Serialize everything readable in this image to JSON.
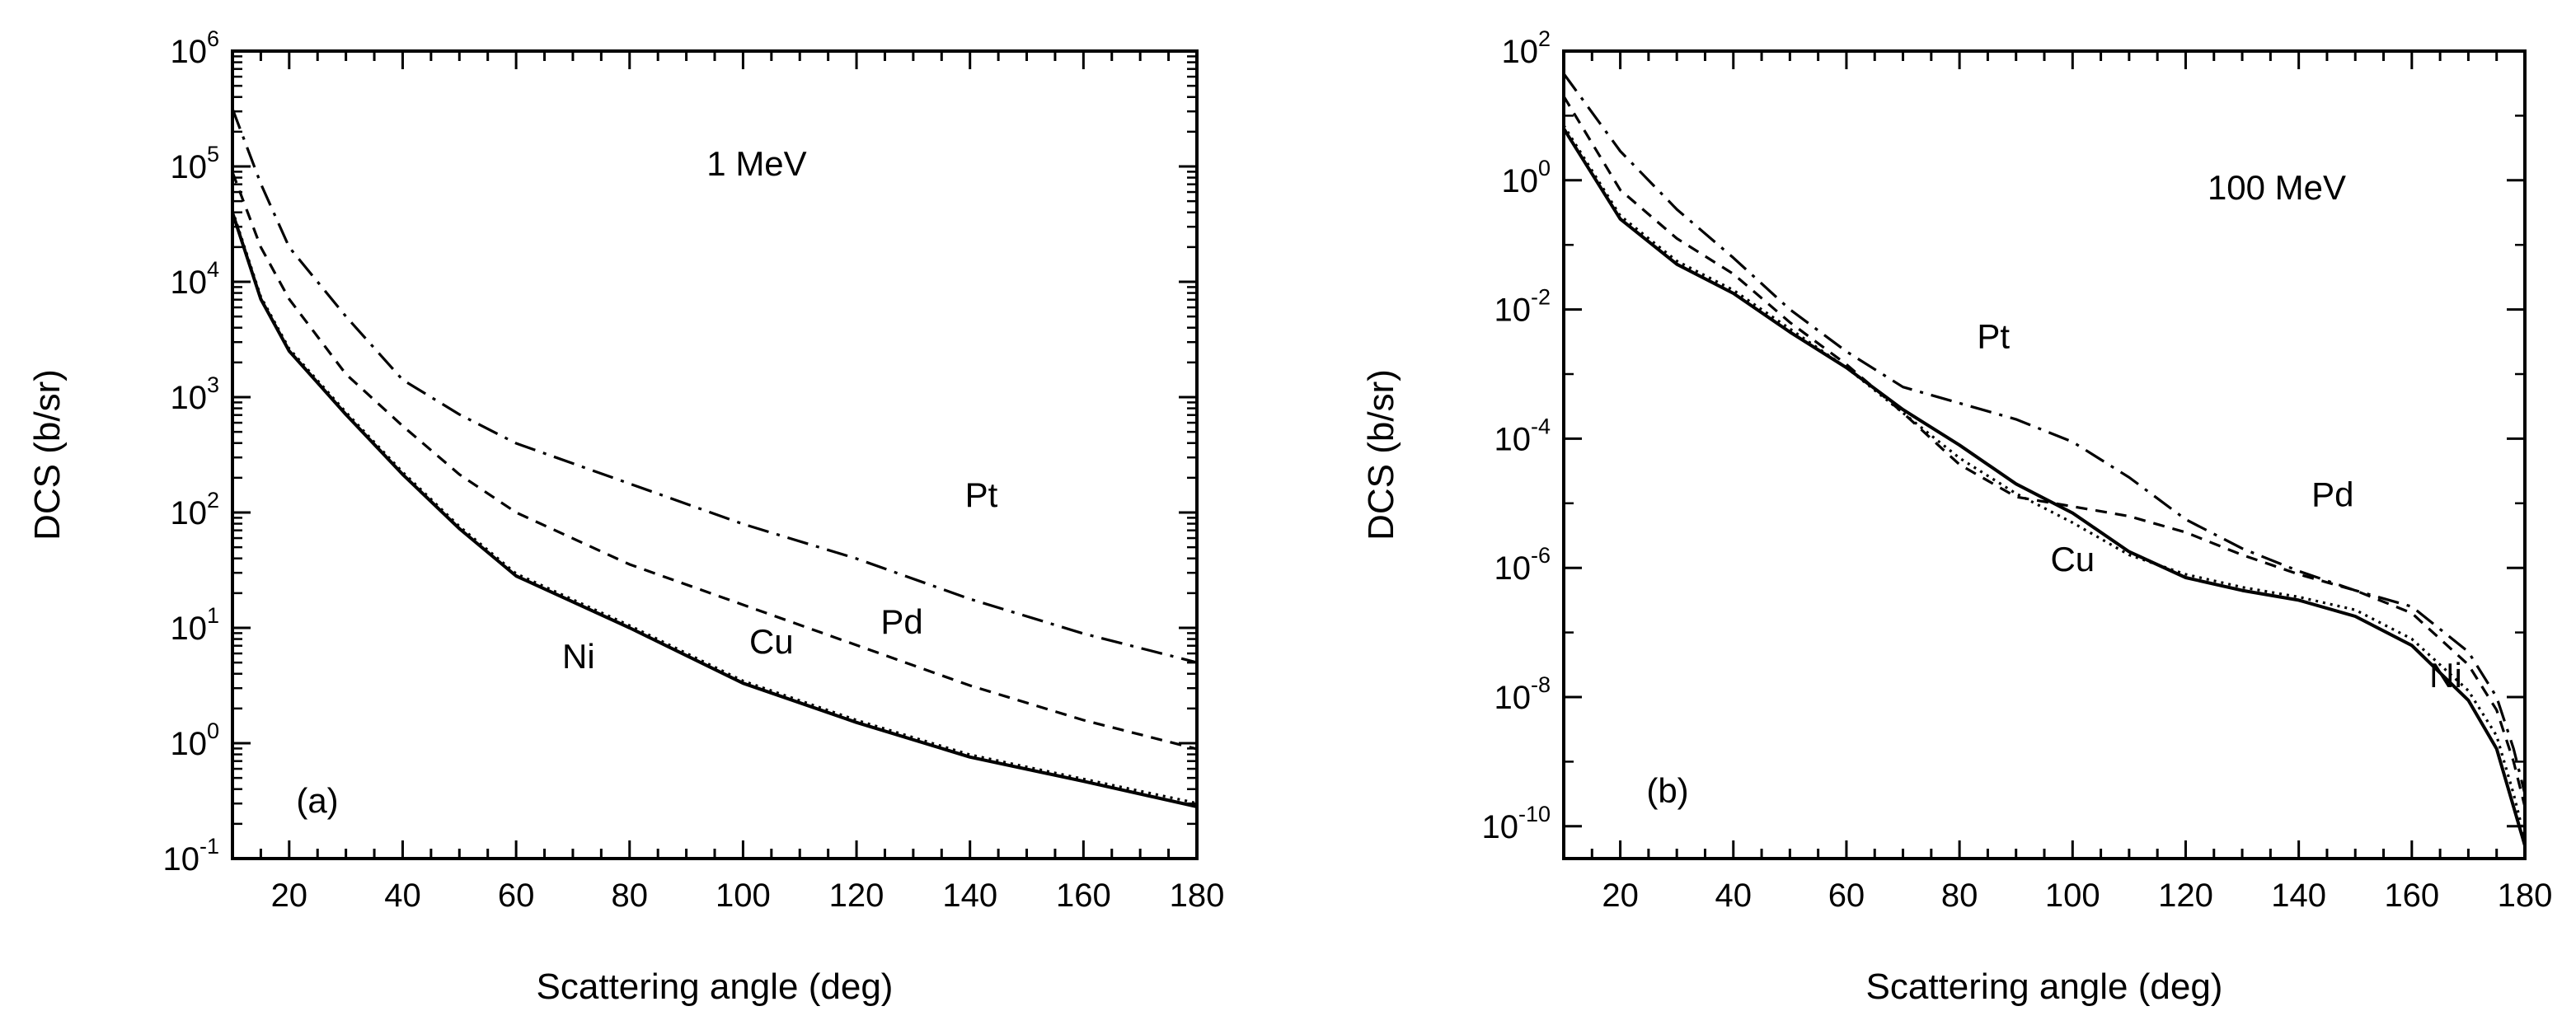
{
  "chart_data": [
    {
      "id": "a",
      "type": "line",
      "panel_label": "(a)",
      "energy_label": "1 MeV",
      "xlabel": "Scattering angle  (deg)",
      "ylabel": "DCS  (b/sr)",
      "xlim": [
        10,
        180
      ],
      "ylim_log10": [
        -1,
        6
      ],
      "yscale": "log",
      "x_ticks": [
        20,
        40,
        60,
        80,
        100,
        120,
        140,
        160,
        180
      ],
      "y_ticks": [
        {
          "base": "10",
          "exp": "-1"
        },
        {
          "base": "10",
          "exp": "0"
        },
        {
          "base": "10",
          "exp": "1"
        },
        {
          "base": "10",
          "exp": "2"
        },
        {
          "base": "10",
          "exp": "3"
        },
        {
          "base": "10",
          "exp": "4"
        },
        {
          "base": "10",
          "exp": "5"
        },
        {
          "base": "10",
          "exp": "6"
        }
      ],
      "series": [
        {
          "name": "Ni",
          "style": "solid",
          "x": [
            10,
            15,
            20,
            30,
            40,
            50,
            60,
            80,
            100,
            120,
            140,
            160,
            180
          ],
          "log10_y": [
            4.6,
            3.85,
            3.4,
            2.85,
            2.33,
            1.86,
            1.45,
            1.0,
            0.52,
            0.18,
            -0.12,
            -0.33,
            -0.55
          ]
        },
        {
          "name": "Cu",
          "style": "dotted",
          "x": [
            10,
            15,
            20,
            30,
            40,
            50,
            60,
            80,
            100,
            120,
            140,
            160,
            180
          ],
          "log10_y": [
            4.62,
            3.87,
            3.42,
            2.87,
            2.35,
            1.88,
            1.47,
            1.02,
            0.54,
            0.2,
            -0.1,
            -0.31,
            -0.52
          ]
        },
        {
          "name": "Pd",
          "style": "dashed",
          "x": [
            10,
            15,
            20,
            30,
            40,
            50,
            60,
            80,
            100,
            120,
            140,
            160,
            180
          ],
          "log10_y": [
            4.95,
            4.3,
            3.85,
            3.2,
            2.75,
            2.33,
            2.0,
            1.55,
            1.2,
            0.85,
            0.5,
            0.2,
            -0.05
          ]
        },
        {
          "name": "Pt",
          "style": "dashdot",
          "x": [
            10,
            15,
            20,
            30,
            40,
            50,
            60,
            80,
            100,
            120,
            140,
            160,
            180
          ],
          "log10_y": [
            5.5,
            4.85,
            4.3,
            3.7,
            3.15,
            2.85,
            2.6,
            2.25,
            1.9,
            1.6,
            1.25,
            0.95,
            0.7
          ]
        }
      ],
      "annotations": [
        {
          "text": "Pt",
          "x": 142,
          "log10_y": 2.05
        },
        {
          "text": "Pd",
          "x": 128,
          "log10_y": 0.95
        },
        {
          "text": "Cu",
          "x": 105,
          "log10_y": 0.78
        },
        {
          "text": "Ni",
          "x": 71,
          "log10_y": 0.65
        }
      ]
    },
    {
      "id": "b",
      "type": "line",
      "panel_label": "(b)",
      "energy_label": "100 MeV",
      "xlabel": "Scattering angle  (deg)",
      "ylabel": "DCS  (b/sr)",
      "xlim": [
        10,
        180
      ],
      "ylim_log10": [
        -10.5,
        2
      ],
      "yscale": "log",
      "x_ticks": [
        20,
        40,
        60,
        80,
        100,
        120,
        140,
        160,
        180
      ],
      "y_ticks": [
        {
          "base": "10",
          "exp": "-10"
        },
        {
          "base": "10",
          "exp": "-8"
        },
        {
          "base": "10",
          "exp": "-6"
        },
        {
          "base": "10",
          "exp": "-4"
        },
        {
          "base": "10",
          "exp": "-2"
        },
        {
          "base": "10",
          "exp": "0"
        },
        {
          "base": "10",
          "exp": "2"
        }
      ],
      "series": [
        {
          "name": "Ni",
          "style": "solid",
          "x": [
            10,
            20,
            30,
            40,
            50,
            60,
            70,
            80,
            90,
            100,
            110,
            120,
            130,
            140,
            150,
            160,
            170,
            175,
            178,
            180
          ],
          "log10_y": [
            0.8,
            -0.6,
            -1.3,
            -1.75,
            -2.35,
            -2.9,
            -3.55,
            -4.1,
            -4.7,
            -5.15,
            -5.75,
            -6.15,
            -6.35,
            -6.5,
            -6.75,
            -7.2,
            -8.05,
            -8.8,
            -9.7,
            -10.3
          ]
        },
        {
          "name": "Cu",
          "style": "dotted",
          "x": [
            10,
            20,
            30,
            40,
            50,
            60,
            70,
            80,
            90,
            100,
            110,
            120,
            130,
            140,
            150,
            160,
            170,
            175,
            178,
            180
          ],
          "log10_y": [
            0.85,
            -0.55,
            -1.25,
            -1.7,
            -2.3,
            -2.9,
            -3.6,
            -4.3,
            -4.85,
            -5.3,
            -5.8,
            -6.1,
            -6.3,
            -6.45,
            -6.65,
            -7.1,
            -7.9,
            -8.6,
            -9.5,
            -10.2
          ]
        },
        {
          "name": "Pd",
          "style": "dashed",
          "x": [
            10,
            20,
            30,
            40,
            50,
            60,
            70,
            80,
            90,
            100,
            110,
            120,
            130,
            140,
            150,
            160,
            170,
            175,
            178,
            180
          ],
          "log10_y": [
            1.3,
            -0.15,
            -0.9,
            -1.45,
            -2.2,
            -2.85,
            -3.6,
            -4.4,
            -4.9,
            -5.05,
            -5.2,
            -5.45,
            -5.8,
            -6.1,
            -6.35,
            -6.7,
            -7.5,
            -8.2,
            -9.0,
            -9.7
          ]
        },
        {
          "name": "Pt",
          "style": "dashdot",
          "x": [
            10,
            20,
            30,
            40,
            50,
            60,
            70,
            80,
            90,
            100,
            110,
            120,
            130,
            140,
            150,
            160,
            170,
            175,
            178,
            180
          ],
          "log10_y": [
            1.65,
            0.45,
            -0.45,
            -1.2,
            -2.0,
            -2.65,
            -3.2,
            -3.45,
            -3.7,
            -4.05,
            -4.6,
            -5.25,
            -5.7,
            -6.05,
            -6.35,
            -6.6,
            -7.3,
            -8.0,
            -8.8,
            -9.5
          ]
        }
      ],
      "annotations": [
        {
          "text": "Pt",
          "x": 86,
          "log10_y": -2.6
        },
        {
          "text": "Pd",
          "x": 146,
          "log10_y": -5.05
        },
        {
          "text": "Cu",
          "x": 100,
          "log10_y": -6.05
        },
        {
          "text": "Ni",
          "x": 166,
          "log10_y": -7.85
        }
      ]
    }
  ]
}
